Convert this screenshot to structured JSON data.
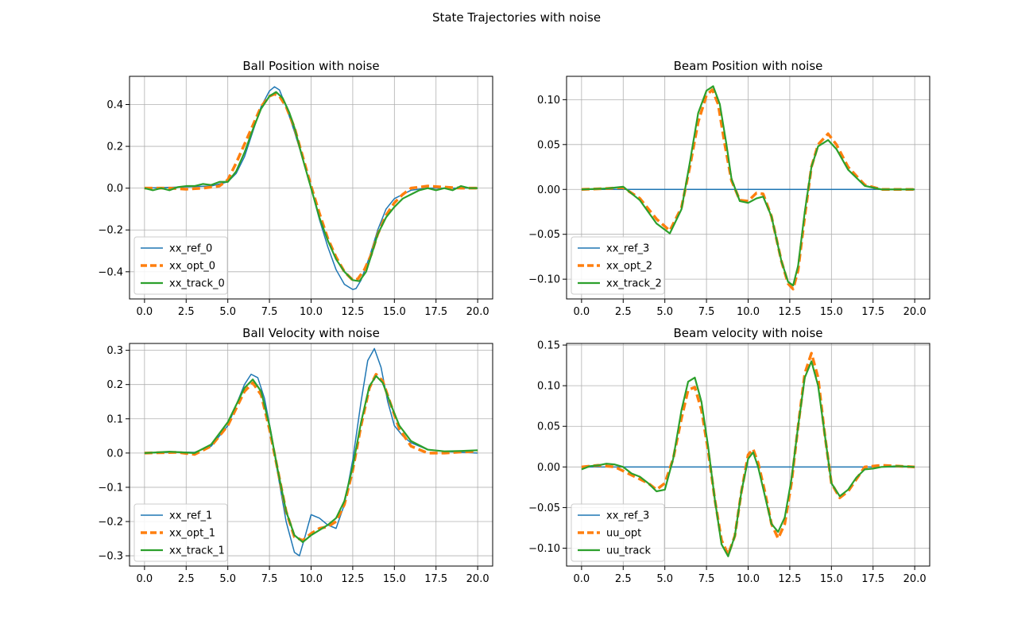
{
  "figure": {
    "title": "State Trajectories with noise"
  },
  "chart_data": [
    {
      "type": "line",
      "title": "Ball Position with noise",
      "xlim": [
        -0.9,
        20.9
      ],
      "ylim": [
        -0.53,
        0.535
      ],
      "xticks": [
        0.0,
        2.5,
        5.0,
        7.5,
        10.0,
        12.5,
        15.0,
        17.5,
        20.0
      ],
      "xtick_labels": [
        "0.0",
        "2.5",
        "5.0",
        "7.5",
        "10.0",
        "12.5",
        "15.0",
        "17.5",
        "20.0"
      ],
      "yticks": [
        -0.4,
        -0.2,
        0.0,
        0.2,
        0.4
      ],
      "ytick_labels": [
        "−0.4",
        "−0.2",
        "0.0",
        "0.2",
        "0.4"
      ],
      "grid": true,
      "legend": "lower left",
      "series": [
        {
          "name": "xx_ref_0",
          "color": "#1f77b4",
          "style": "solid",
          "width": 1.5,
          "x": [
            0,
            2,
            4,
            5,
            5.5,
            6,
            6.5,
            7,
            7.5,
            7.8,
            8.1,
            8.5,
            9,
            9.5,
            10,
            10.5,
            11,
            11.5,
            12,
            12.5,
            12.7,
            13,
            13.5,
            14,
            14.5,
            15,
            15.5,
            16,
            17,
            18,
            20
          ],
          "y": [
            0,
            0.005,
            0.01,
            0.03,
            0.07,
            0.15,
            0.27,
            0.39,
            0.465,
            0.485,
            0.47,
            0.39,
            0.27,
            0.14,
            0,
            -0.15,
            -0.28,
            -0.39,
            -0.46,
            -0.485,
            -0.48,
            -0.44,
            -0.33,
            -0.2,
            -0.1,
            -0.05,
            -0.03,
            -0.01,
            0,
            0,
            0
          ]
        },
        {
          "name": "xx_opt_0",
          "color": "#ff7f0e",
          "style": "dashed",
          "width": 3.5,
          "x": [
            0,
            1.5,
            2.5,
            3.5,
            4.5,
            5,
            5.5,
            6,
            6.5,
            7,
            7.5,
            7.8,
            8.1,
            8.5,
            9,
            9.5,
            10,
            10.5,
            11,
            11.5,
            12,
            12.5,
            12.8,
            13.2,
            13.6,
            14,
            14.5,
            15,
            15.5,
            16,
            17,
            18,
            19,
            20
          ],
          "y": [
            0,
            0,
            -0.005,
            0,
            0.01,
            0.04,
            0.12,
            0.21,
            0.3,
            0.39,
            0.44,
            0.45,
            0.44,
            0.39,
            0.29,
            0.15,
            0.01,
            -0.12,
            -0.24,
            -0.33,
            -0.4,
            -0.44,
            -0.435,
            -0.39,
            -0.32,
            -0.22,
            -0.13,
            -0.07,
            -0.03,
            0,
            0.01,
            0.005,
            0,
            0
          ]
        },
        {
          "name": "xx_track_0",
          "color": "#2ca02c",
          "style": "solid",
          "width": 2.2,
          "x": [
            0,
            0.5,
            1,
            1.5,
            2,
            2.5,
            3,
            3.5,
            4,
            4.5,
            5,
            5.5,
            6,
            6.5,
            7,
            7.5,
            7.9,
            8.3,
            8.7,
            9,
            9.5,
            10,
            10.5,
            11,
            11.5,
            12,
            12.5,
            12.9,
            13.3,
            13.7,
            14,
            14.5,
            15,
            15.5,
            16,
            16.5,
            17,
            17.5,
            18,
            18.5,
            19,
            19.5,
            20
          ],
          "y": [
            0,
            -0.01,
            0,
            -0.01,
            0.005,
            0.01,
            0.01,
            0.02,
            0.015,
            0.03,
            0.03,
            0.08,
            0.17,
            0.28,
            0.38,
            0.44,
            0.46,
            0.43,
            0.36,
            0.29,
            0.14,
            0,
            -0.14,
            -0.25,
            -0.34,
            -0.4,
            -0.44,
            -0.445,
            -0.4,
            -0.3,
            -0.22,
            -0.14,
            -0.09,
            -0.05,
            -0.03,
            -0.01,
            0,
            -0.01,
            0,
            -0.01,
            0.01,
            0,
            0
          ]
        }
      ]
    },
    {
      "type": "line",
      "title": "Beam Position with noise",
      "xlim": [
        -0.9,
        20.9
      ],
      "ylim": [
        -0.122,
        0.126
      ],
      "xticks": [
        0.0,
        2.5,
        5.0,
        7.5,
        10.0,
        12.5,
        15.0,
        17.5,
        20.0
      ],
      "xtick_labels": [
        "0.0",
        "2.5",
        "5.0",
        "7.5",
        "10.0",
        "12.5",
        "15.0",
        "17.5",
        "20.0"
      ],
      "yticks": [
        -0.1,
        -0.05,
        0.0,
        0.05,
        0.1
      ],
      "ytick_labels": [
        "−0.10",
        "−0.05",
        "0.00",
        "0.05",
        "0.10"
      ],
      "grid": true,
      "legend": "lower left",
      "series": [
        {
          "name": "xx_ref_3",
          "color": "#1f77b4",
          "style": "solid",
          "width": 1.5,
          "x": [
            0,
            20
          ],
          "y": [
            0,
            0
          ]
        },
        {
          "name": "xx_opt_2",
          "color": "#ff7f0e",
          "style": "dashed",
          "width": 3.5,
          "x": [
            0,
            1.5,
            2.5,
            3.5,
            4.5,
            5.3,
            6,
            6.5,
            7,
            7.5,
            7.85,
            8.2,
            8.6,
            9,
            9.5,
            10,
            10.5,
            10.9,
            11.4,
            12,
            12.4,
            12.7,
            13,
            13.4,
            13.8,
            14.2,
            14.8,
            15.3,
            16,
            17,
            18,
            19,
            20
          ],
          "y": [
            0,
            0.001,
            0.002,
            -0.01,
            -0.033,
            -0.046,
            -0.02,
            0.025,
            0.075,
            0.105,
            0.111,
            0.095,
            0.05,
            0.01,
            -0.012,
            -0.013,
            -0.004,
            -0.005,
            -0.03,
            -0.08,
            -0.105,
            -0.111,
            -0.09,
            -0.03,
            0.025,
            0.05,
            0.062,
            0.05,
            0.025,
            0.005,
            0,
            0,
            0
          ]
        },
        {
          "name": "xx_track_2",
          "color": "#2ca02c",
          "style": "solid",
          "width": 2.2,
          "x": [
            0,
            1.5,
            2.5,
            3.5,
            4.5,
            5.3,
            6,
            6.5,
            7,
            7.5,
            7.9,
            8.3,
            8.7,
            9,
            9.5,
            10,
            10.5,
            10.9,
            11.4,
            12,
            12.4,
            12.7,
            13,
            13.4,
            13.8,
            14.2,
            14.8,
            15.3,
            16,
            17,
            18,
            19,
            20
          ],
          "y": [
            0,
            0.001,
            0.003,
            -0.012,
            -0.038,
            -0.049,
            -0.022,
            0.03,
            0.085,
            0.11,
            0.115,
            0.095,
            0.05,
            0.012,
            -0.013,
            -0.015,
            -0.01,
            -0.008,
            -0.03,
            -0.08,
            -0.103,
            -0.107,
            -0.085,
            -0.025,
            0.025,
            0.048,
            0.055,
            0.045,
            0.022,
            0.004,
            0,
            0,
            0
          ]
        }
      ]
    },
    {
      "type": "line",
      "title": "Ball Velocity with noise",
      "xlim": [
        -0.9,
        20.9
      ],
      "ylim": [
        -0.33,
        0.32
      ],
      "xticks": [
        0.0,
        2.5,
        5.0,
        7.5,
        10.0,
        12.5,
        15.0,
        17.5,
        20.0
      ],
      "xtick_labels": [
        "0.0",
        "2.5",
        "5.0",
        "7.5",
        "10.0",
        "12.5",
        "15.0",
        "17.5",
        "20.0"
      ],
      "yticks": [
        -0.3,
        -0.2,
        -0.1,
        0.0,
        0.1,
        0.2,
        0.3
      ],
      "ytick_labels": [
        "−0.3",
        "−0.2",
        "−0.1",
        "0.0",
        "0.1",
        "0.2",
        "0.3"
      ],
      "grid": true,
      "legend": "lower left",
      "series": [
        {
          "name": "xx_ref_1",
          "color": "#1f77b4",
          "style": "solid",
          "width": 1.5,
          "x": [
            0,
            2,
            3,
            4,
            5,
            5.5,
            6,
            6.4,
            6.8,
            7.2,
            7.6,
            8,
            8.5,
            9,
            9.3,
            9.6,
            10,
            10.5,
            11,
            11.5,
            12,
            12.5,
            13,
            13.4,
            13.8,
            14.2,
            14.6,
            15,
            15.5,
            16,
            17,
            18,
            20
          ],
          "y": [
            0,
            0.003,
            0.002,
            0.02,
            0.08,
            0.14,
            0.2,
            0.23,
            0.22,
            0.16,
            0.06,
            -0.06,
            -0.2,
            -0.29,
            -0.3,
            -0.25,
            -0.18,
            -0.19,
            -0.21,
            -0.22,
            -0.15,
            -0.02,
            0.15,
            0.27,
            0.305,
            0.25,
            0.15,
            0.08,
            0.05,
            0.03,
            0.01,
            0.005,
            0
          ]
        },
        {
          "name": "xx_opt_1",
          "color": "#ff7f0e",
          "style": "dashed",
          "width": 3.5,
          "x": [
            0,
            2,
            3,
            4,
            5,
            5.5,
            6,
            6.5,
            7,
            7.5,
            8,
            8.5,
            9,
            9.5,
            10,
            10.5,
            11,
            11.5,
            12,
            12.5,
            13,
            13.5,
            13.9,
            14.3,
            14.8,
            15.3,
            16,
            17,
            18,
            19,
            20
          ],
          "y": [
            0,
            0.002,
            -0.004,
            0.02,
            0.08,
            0.13,
            0.18,
            0.205,
            0.17,
            0.07,
            -0.05,
            -0.17,
            -0.245,
            -0.255,
            -0.235,
            -0.22,
            -0.215,
            -0.2,
            -0.15,
            -0.05,
            0.08,
            0.19,
            0.23,
            0.21,
            0.14,
            0.07,
            0.02,
            0,
            0,
            0.003,
            0.005
          ]
        },
        {
          "name": "xx_track_1",
          "color": "#2ca02c",
          "style": "solid",
          "width": 2.2,
          "x": [
            0,
            1.5,
            3,
            4,
            5,
            5.5,
            6,
            6.5,
            7,
            7.5,
            8,
            8.5,
            9,
            9.5,
            10,
            10.5,
            11,
            11.5,
            12,
            12.5,
            13,
            13.5,
            13.9,
            14.3,
            14.8,
            15.3,
            16,
            17,
            18,
            19,
            20
          ],
          "y": [
            0,
            0.004,
            0,
            0.025,
            0.09,
            0.14,
            0.19,
            0.215,
            0.18,
            0.08,
            -0.05,
            -0.17,
            -0.24,
            -0.26,
            -0.24,
            -0.225,
            -0.21,
            -0.19,
            -0.14,
            -0.04,
            0.09,
            0.195,
            0.225,
            0.205,
            0.14,
            0.08,
            0.035,
            0.01,
            0.005,
            0.006,
            0.008
          ]
        }
      ]
    },
    {
      "type": "line",
      "title": "Beam velocity with noise",
      "xlim": [
        -0.9,
        20.9
      ],
      "ylim": [
        -0.122,
        0.152
      ],
      "xticks": [
        0.0,
        2.5,
        5.0,
        7.5,
        10.0,
        12.5,
        15.0,
        17.5,
        20.0
      ],
      "xtick_labels": [
        "0.0",
        "2.5",
        "5.0",
        "7.5",
        "10.0",
        "12.5",
        "15.0",
        "17.5",
        "20.0"
      ],
      "yticks": [
        -0.1,
        -0.05,
        0.0,
        0.05,
        0.1,
        0.15
      ],
      "ytick_labels": [
        "−0.10",
        "−0.05",
        "0.00",
        "0.05",
        "0.10",
        "0.15"
      ],
      "grid": true,
      "legend": "lower left",
      "series": [
        {
          "name": "xx_ref_3",
          "color": "#1f77b4",
          "style": "solid",
          "width": 1.5,
          "x": [
            0,
            20
          ],
          "y": [
            0,
            0
          ]
        },
        {
          "name": "uu_opt",
          "color": "#ff7f0e",
          "style": "dashed",
          "width": 3.5,
          "x": [
            0,
            1,
            2,
            3,
            4,
            4.5,
            5,
            5.5,
            6,
            6.4,
            6.8,
            7.2,
            7.6,
            8,
            8.4,
            8.8,
            9.2,
            9.6,
            10,
            10.3,
            10.6,
            11,
            11.4,
            11.8,
            12.2,
            12.6,
            13,
            13.4,
            13.8,
            14.2,
            14.6,
            15,
            15.5,
            16,
            16.5,
            17,
            18,
            19,
            20
          ],
          "y": [
            0,
            0.002,
            0,
            -0.01,
            -0.02,
            -0.028,
            -0.02,
            0.01,
            0.06,
            0.095,
            0.098,
            0.07,
            0.02,
            -0.04,
            -0.09,
            -0.108,
            -0.085,
            -0.03,
            0.015,
            0.022,
            0.005,
            -0.03,
            -0.07,
            -0.088,
            -0.07,
            -0.02,
            0.05,
            0.115,
            0.14,
            0.11,
            0.04,
            -0.02,
            -0.038,
            -0.03,
            -0.015,
            0,
            0.002,
            0.001,
            0
          ]
        },
        {
          "name": "uu_track",
          "color": "#2ca02c",
          "style": "solid",
          "width": 2.2,
          "x": [
            0,
            0.5,
            1,
            1.5,
            2,
            2.5,
            3,
            3.5,
            4,
            4.5,
            5,
            5.5,
            6,
            6.4,
            6.8,
            7.2,
            7.6,
            8,
            8.4,
            8.8,
            9.2,
            9.6,
            10,
            10.3,
            10.6,
            11,
            11.4,
            11.8,
            12.2,
            12.6,
            13,
            13.4,
            13.8,
            14.2,
            14.6,
            15,
            15.5,
            16,
            16.5,
            17,
            17.5,
            18,
            19,
            20
          ],
          "y": [
            -0.003,
            0.001,
            0.002,
            0.004,
            0.003,
            0,
            -0.008,
            -0.012,
            -0.02,
            -0.03,
            -0.028,
            0.01,
            0.07,
            0.105,
            0.11,
            0.08,
            0.025,
            -0.04,
            -0.095,
            -0.11,
            -0.085,
            -0.03,
            0.01,
            0.018,
            0,
            -0.035,
            -0.07,
            -0.08,
            -0.062,
            -0.015,
            0.05,
            0.11,
            0.13,
            0.1,
            0.04,
            -0.02,
            -0.036,
            -0.028,
            -0.013,
            -0.003,
            -0.002,
            0,
            0.001,
            0
          ]
        }
      ]
    }
  ]
}
